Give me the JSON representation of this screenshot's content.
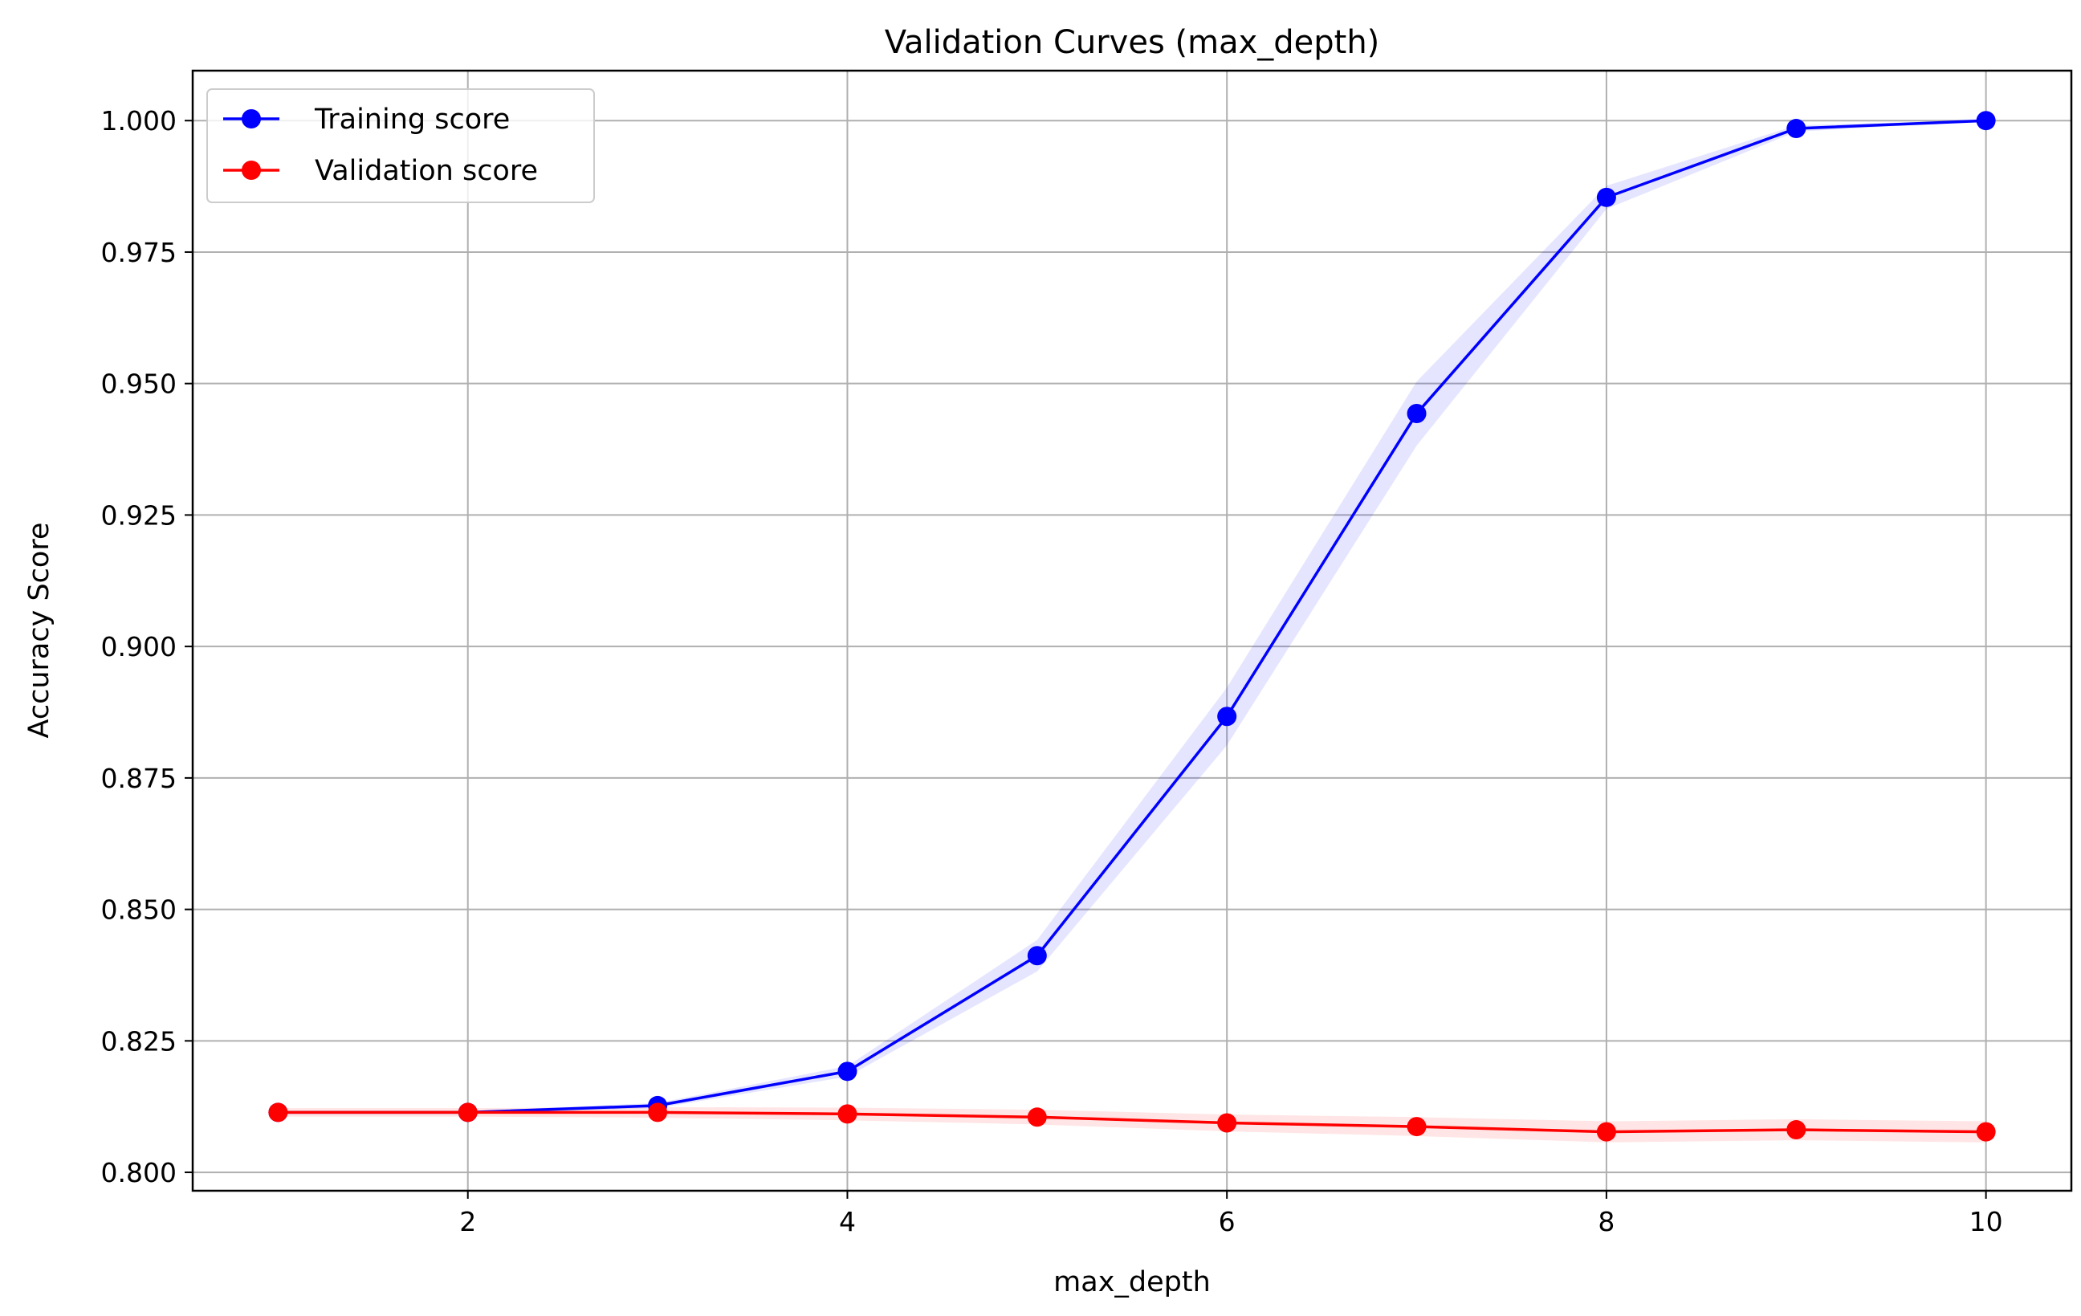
{
  "chart_data": {
    "type": "line",
    "title": "Validation Curves (max_depth)",
    "xlabel": "max_depth",
    "ylabel": "Accuracy Score",
    "x": [
      1,
      2,
      3,
      4,
      5,
      6,
      7,
      8,
      9,
      10
    ],
    "xlim": [
      0.55,
      10.45
    ],
    "ylim": [
      0.7965,
      1.0095
    ],
    "xticks": [
      2,
      4,
      6,
      8,
      10
    ],
    "xtick_labels": [
      "2",
      "4",
      "6",
      "8",
      "10"
    ],
    "yticks": [
      0.8,
      0.825,
      0.85,
      0.875,
      0.9,
      0.925,
      0.95,
      0.975,
      1.0
    ],
    "ytick_labels": [
      "0.800",
      "0.825",
      "0.850",
      "0.875",
      "0.900",
      "0.925",
      "0.950",
      "0.975",
      "1.000"
    ],
    "grid": true,
    "legend_position": "top-left",
    "series": [
      {
        "name": "Training score",
        "color": "#0000ff",
        "band_color": "#0000ff",
        "values": [
          0.8114,
          0.8114,
          0.8127,
          0.8192,
          0.8412,
          0.8867,
          0.9443,
          0.9854,
          0.9985,
          1.0
        ],
        "band_low": [
          0.8112,
          0.8112,
          0.8122,
          0.8182,
          0.8382,
          0.8812,
          0.9382,
          0.9832,
          0.9979,
          0.9999
        ],
        "band_high": [
          0.8116,
          0.8116,
          0.8132,
          0.8202,
          0.8442,
          0.8922,
          0.9504,
          0.9876,
          0.9991,
          1.0001
        ]
      },
      {
        "name": "Validation score",
        "color": "#ff0000",
        "band_color": "#ff0000",
        "values": [
          0.8114,
          0.8114,
          0.8114,
          0.8111,
          0.8105,
          0.8094,
          0.8087,
          0.8077,
          0.8081,
          0.8077
        ],
        "band_low": [
          0.8106,
          0.8106,
          0.8104,
          0.8099,
          0.8091,
          0.8078,
          0.8069,
          0.8057,
          0.8061,
          0.8057
        ],
        "band_high": [
          0.8122,
          0.8122,
          0.8124,
          0.8123,
          0.8119,
          0.811,
          0.8105,
          0.8097,
          0.8101,
          0.8097
        ]
      }
    ]
  }
}
